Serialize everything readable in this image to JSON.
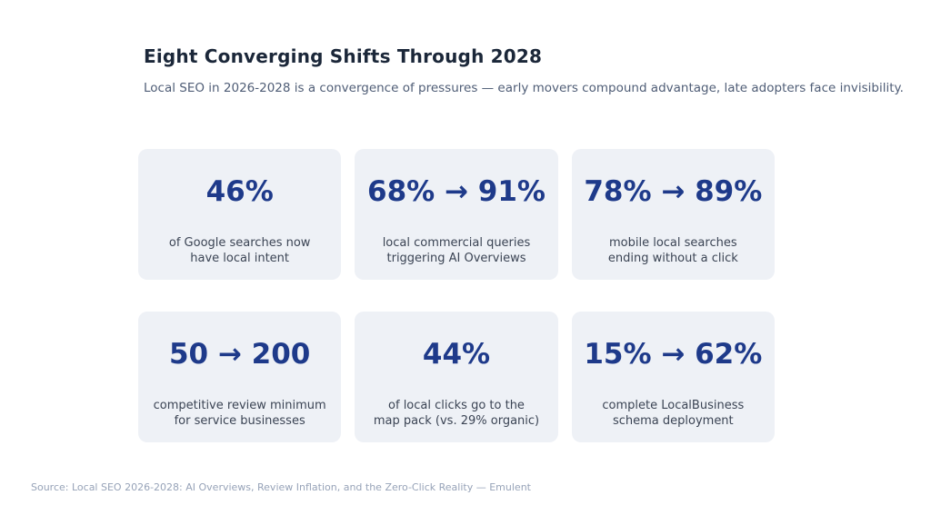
{
  "header": {
    "title": "Eight Converging Shifts Through 2028",
    "subtitle": "Local SEO in 2026-2028 is a convergence of pressures — early movers compound advantage, late adopters face invisibility."
  },
  "cards": [
    {
      "value": "46%",
      "label": "of Google searches now\nhave local intent"
    },
    {
      "value": "68% → 91%",
      "label": "local commercial queries\ntriggering AI Overviews"
    },
    {
      "value": "78% → 89%",
      "label": "mobile local searches\nending without a click"
    },
    {
      "value": "50 → 200",
      "label": "competitive review minimum\nfor service businesses"
    },
    {
      "value": "44%",
      "label": "of local clicks go to the\nmap pack (vs. 29% organic)"
    },
    {
      "value": "15% → 62%",
      "label": "complete LocalBusiness\nschema deployment"
    }
  ],
  "footer": {
    "source": "Source: Local SEO 2026-2028: AI Overviews, Review Inflation, and the Zero-Click Reality — Emulent"
  },
  "colors": {
    "accent_stat_blue": "#1e3a8a",
    "title_navy": "#1b2739",
    "subtitle_gray_blue": "#4f5d76",
    "label_slate": "#3b4454",
    "card_background": "#eef1f6",
    "page_background": "#ffffff",
    "source_light_gray": "#97a3b8"
  },
  "chart_data": {
    "type": "table",
    "title": "Eight Converging Shifts Through 2028",
    "subtitle": "Local SEO in 2026-2028 is a convergence of pressures — early movers compound advantage, late adopters face invisibility.",
    "layout": "3x2 grid of stat cards",
    "columns": [
      "stat",
      "description"
    ],
    "stats": [
      {
        "display": "46%",
        "value": 46,
        "unit": "%",
        "label": "of Google searches now have local intent"
      },
      {
        "display": "68% → 91%",
        "from": 68,
        "to": 91,
        "unit": "%",
        "label": "local commercial queries triggering AI Overviews"
      },
      {
        "display": "78% → 89%",
        "from": 78,
        "to": 89,
        "unit": "%",
        "label": "mobile local searches ending without a click"
      },
      {
        "display": "50 → 200",
        "from": 50,
        "to": 200,
        "unit": "",
        "label": "competitive review minimum for service businesses"
      },
      {
        "display": "44%",
        "value": 44,
        "unit": "%",
        "label": "of local clicks go to the map pack (vs. 29% organic)"
      },
      {
        "display": "15% → 62%",
        "from": 15,
        "to": 62,
        "unit": "%",
        "label": "complete LocalBusiness schema deployment"
      }
    ],
    "source": "Source: Local SEO 2026-2028: AI Overviews, Review Inflation, and the Zero-Click Reality — Emulent"
  }
}
